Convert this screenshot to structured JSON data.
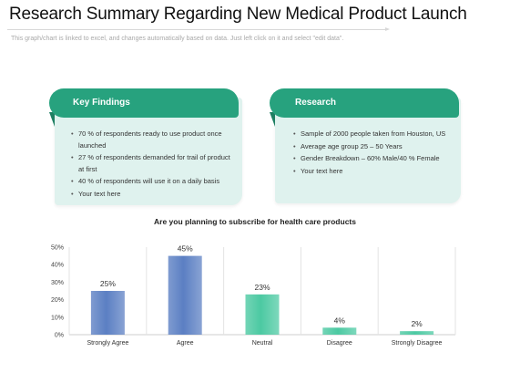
{
  "header": {
    "title": "Research Summary Regarding New Medical Product Launch",
    "subtitle": "This graph/chart is linked to excel, and changes automatically based on data. Just left click on it and select \"edit data\"."
  },
  "cards": {
    "findings": {
      "title": "Key Findings",
      "items": [
        "70 % of respondents ready to use product once launched",
        "27 % of respondents demanded for trail of product at first",
        "40 % of respondents will use it on a daily basis",
        "Your text here"
      ]
    },
    "research": {
      "title": "Research",
      "items": [
        "Sample of 2000 people taken from Houston, US",
        "Average age group 25 – 50 Years",
        "Gender Breakdown – 60% Male/40 % Female",
        "Your text here"
      ]
    }
  },
  "colors": {
    "accent_green": "#27a27e",
    "card_bg": "#dff2ee",
    "bar_blue": "#5b7fc3",
    "bar_green": "#4cc9a2"
  },
  "chart_data": {
    "type": "bar",
    "title": "Are you planning to subscribe for health care products",
    "categories": [
      "Strongly Agree",
      "Agree",
      "Neutral",
      "Disagree",
      "Strongly Disagree"
    ],
    "values": [
      25,
      45,
      23,
      4,
      2
    ],
    "data_labels": [
      "25%",
      "45%",
      "23%",
      "4%",
      "2%"
    ],
    "bar_colors": [
      "#5b7fc3",
      "#5b7fc3",
      "#4cc9a2",
      "#4cc9a2",
      "#4cc9a2"
    ],
    "y_ticks": [
      "0%",
      "10%",
      "20%",
      "30%",
      "40%",
      "50%"
    ],
    "ylim": [
      0,
      50
    ],
    "grid": "vertical-separators",
    "legend": "none"
  }
}
